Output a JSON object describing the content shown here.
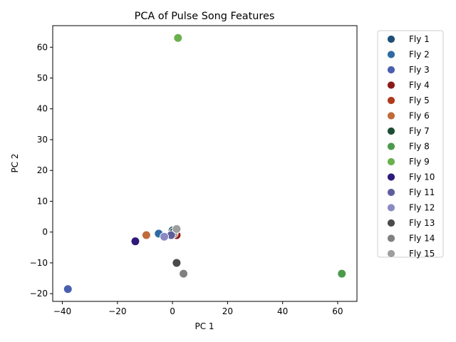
{
  "chart_data": {
    "type": "scatter",
    "title": "PCA of Pulse Song Features",
    "xlabel": "PC 1",
    "ylabel": "PC 2",
    "xlim": [
      -43.5,
      67.0
    ],
    "ylim": [
      -22.5,
      67.0
    ],
    "xticks": [
      -40,
      -20,
      0,
      20,
      40,
      60
    ],
    "yticks": [
      -20,
      -10,
      0,
      10,
      20,
      30,
      40,
      50,
      60
    ],
    "grid": false,
    "legend_position": "outside-top-right",
    "series": [
      {
        "name": "Fly 1",
        "color": "#1f4e79",
        "x": 0.0,
        "y": 0.5
      },
      {
        "name": "Fly 2",
        "color": "#2f6aa3",
        "x": -5.0,
        "y": -0.5
      },
      {
        "name": "Fly 3",
        "color": "#4a5fb0",
        "x": -38.0,
        "y": -18.5
      },
      {
        "name": "Fly 4",
        "color": "#8b1a1a",
        "x": 1.5,
        "y": -1.0
      },
      {
        "name": "Fly 5",
        "color": "#b03a1e",
        "x": 0.5,
        "y": -0.5
      },
      {
        "name": "Fly 6",
        "color": "#c06a3a",
        "x": -9.5,
        "y": -1.0
      },
      {
        "name": "Fly 7",
        "color": "#1e4d35",
        "x": 0.3,
        "y": 0.0
      },
      {
        "name": "Fly 8",
        "color": "#4c9a4c",
        "x": 61.5,
        "y": -13.5
      },
      {
        "name": "Fly 9",
        "color": "#6ab04c",
        "x": 2.0,
        "y": 63.0
      },
      {
        "name": "Fly 10",
        "color": "#2e1a7a",
        "x": -13.5,
        "y": -3.0
      },
      {
        "name": "Fly 11",
        "color": "#5e5e9e",
        "x": -0.5,
        "y": -1.0
      },
      {
        "name": "Fly 12",
        "color": "#8a8ac4",
        "x": -3.0,
        "y": -1.5
      },
      {
        "name": "Fly 13",
        "color": "#4a4a4a",
        "x": 1.5,
        "y": -10.0
      },
      {
        "name": "Fly 14",
        "color": "#808080",
        "x": 4.0,
        "y": -13.5
      },
      {
        "name": "Fly 15",
        "color": "#9e9e9e",
        "x": 1.5,
        "y": 1.0
      }
    ]
  }
}
